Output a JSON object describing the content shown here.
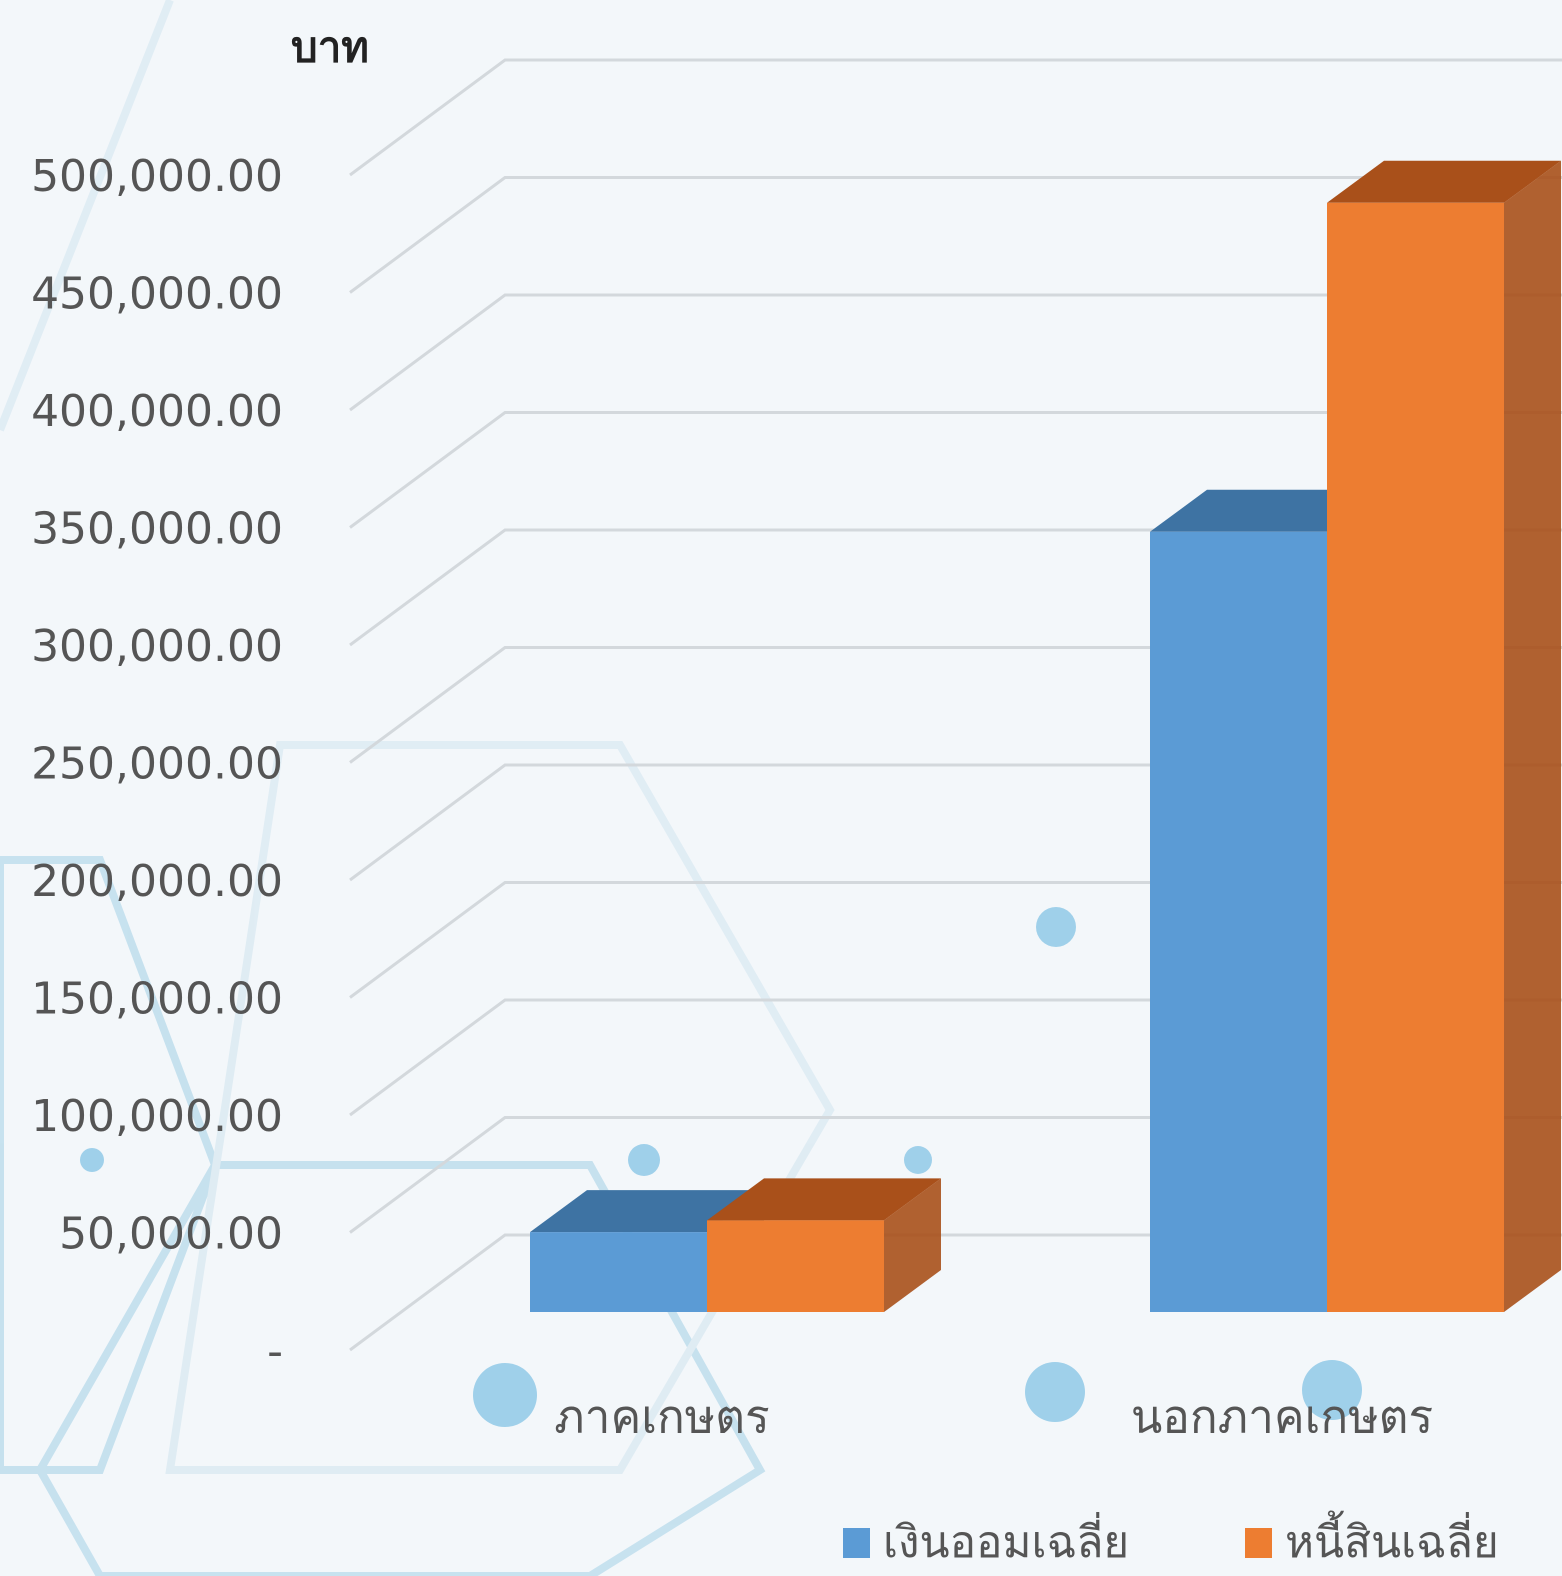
{
  "chart_data": {
    "type": "bar3d",
    "y_label": "บาท",
    "categories": [
      "ภาคเกษตร",
      "นอกภาคเกษตร"
    ],
    "series": [
      {
        "name": "เงินออมเฉลี่ย",
        "color": "#5b9bd5",
        "side_color": "#3e73a3",
        "values": [
          34000,
          332000
        ]
      },
      {
        "name": "หนี้สินเฉลี่ย",
        "color": "#ed7d31",
        "side_color": "#a9501a",
        "values": [
          39000,
          472000
        ]
      }
    ],
    "ylim": [
      0,
      500000
    ],
    "yticks": [
      {
        "value": 0,
        "label": "-"
      },
      {
        "value": 50000,
        "label": "50,000.00"
      },
      {
        "value": 100000,
        "label": "100,000.00"
      },
      {
        "value": 150000,
        "label": "150,000.00"
      },
      {
        "value": 200000,
        "label": "200,000.00"
      },
      {
        "value": 250000,
        "label": "250,000.00"
      },
      {
        "value": 300000,
        "label": "300,000.00"
      },
      {
        "value": 350000,
        "label": "350,000.00"
      },
      {
        "value": 400000,
        "label": "400,000.00"
      },
      {
        "value": 450000,
        "label": "450,000.00"
      },
      {
        "value": 500000,
        "label": "500,000.00"
      }
    ],
    "grid": true
  }
}
